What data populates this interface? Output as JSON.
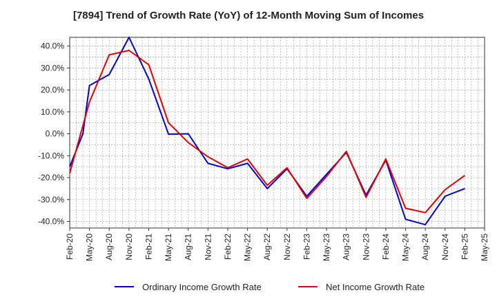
{
  "chart_data": {
    "type": "line",
    "title": "[7894]  Trend of Growth Rate (YoY) of 12-Month Moving Sum of Incomes",
    "xlabel": "",
    "ylabel": "",
    "categories": [
      "Feb-20",
      "May-20",
      "Aug-20",
      "Nov-20",
      "Feb-21",
      "May-21",
      "Aug-21",
      "Nov-21",
      "Feb-22",
      "May-22",
      "Aug-22",
      "Nov-22",
      "Feb-23",
      "May-23",
      "Aug-23",
      "Nov-23",
      "Feb-24",
      "May-24",
      "Aug-24",
      "Nov-24",
      "Feb-25",
      "May-25"
    ],
    "ylim": [
      -43,
      44
    ],
    "yticks": [
      40,
      30,
      20,
      10,
      0,
      -10,
      -20,
      -30,
      -40
    ],
    "ytick_labels": [
      "40.0%",
      "30.0%",
      "20.0%",
      "10.0%",
      "0.0%",
      "-10.0%",
      "-20.0%",
      "-30.0%",
      "-40.0%"
    ],
    "grid": true,
    "legend_position": "bottom",
    "series": [
      {
        "name": "Ordinary Income Growth Rate",
        "color": "#0000cc",
        "x": [
          "Feb-20",
          "Apr-20",
          "May-20",
          "Aug-20",
          "Nov-20",
          "Feb-21",
          "May-21",
          "Aug-21",
          "Nov-21",
          "Feb-22",
          "May-22",
          "Aug-22",
          "Nov-22",
          "Feb-23",
          "May-23",
          "Aug-23",
          "Nov-23",
          "Feb-24",
          "May-24",
          "Aug-24",
          "Nov-24",
          "Feb-25"
        ],
        "values": [
          -15,
          0,
          22,
          27,
          44,
          25,
          -0.2,
          0,
          -13.5,
          -16,
          -13.5,
          -25,
          -16,
          -28.5,
          -18.5,
          -8.5,
          -28,
          -12,
          -39,
          -41.5,
          -28.5,
          -25
        ]
      },
      {
        "name": "Net Income Growth Rate",
        "color": "#dd0000",
        "x": [
          "Feb-20",
          "May-20",
          "Aug-20",
          "Nov-20",
          "Feb-21",
          "May-21",
          "Aug-21",
          "Nov-21",
          "Feb-22",
          "May-22",
          "Aug-22",
          "Nov-22",
          "Feb-23",
          "May-23",
          "Aug-23",
          "Nov-23",
          "Feb-24",
          "May-24",
          "Aug-24",
          "Nov-24",
          "Feb-25"
        ],
        "values": [
          -18,
          14.5,
          36,
          38,
          31.5,
          5,
          -4,
          -10.5,
          -15.5,
          -11.5,
          -23.5,
          -15.5,
          -29.5,
          -19.5,
          -8,
          -29,
          -11.5,
          -34,
          -36,
          -25.5,
          -19
        ]
      }
    ]
  }
}
